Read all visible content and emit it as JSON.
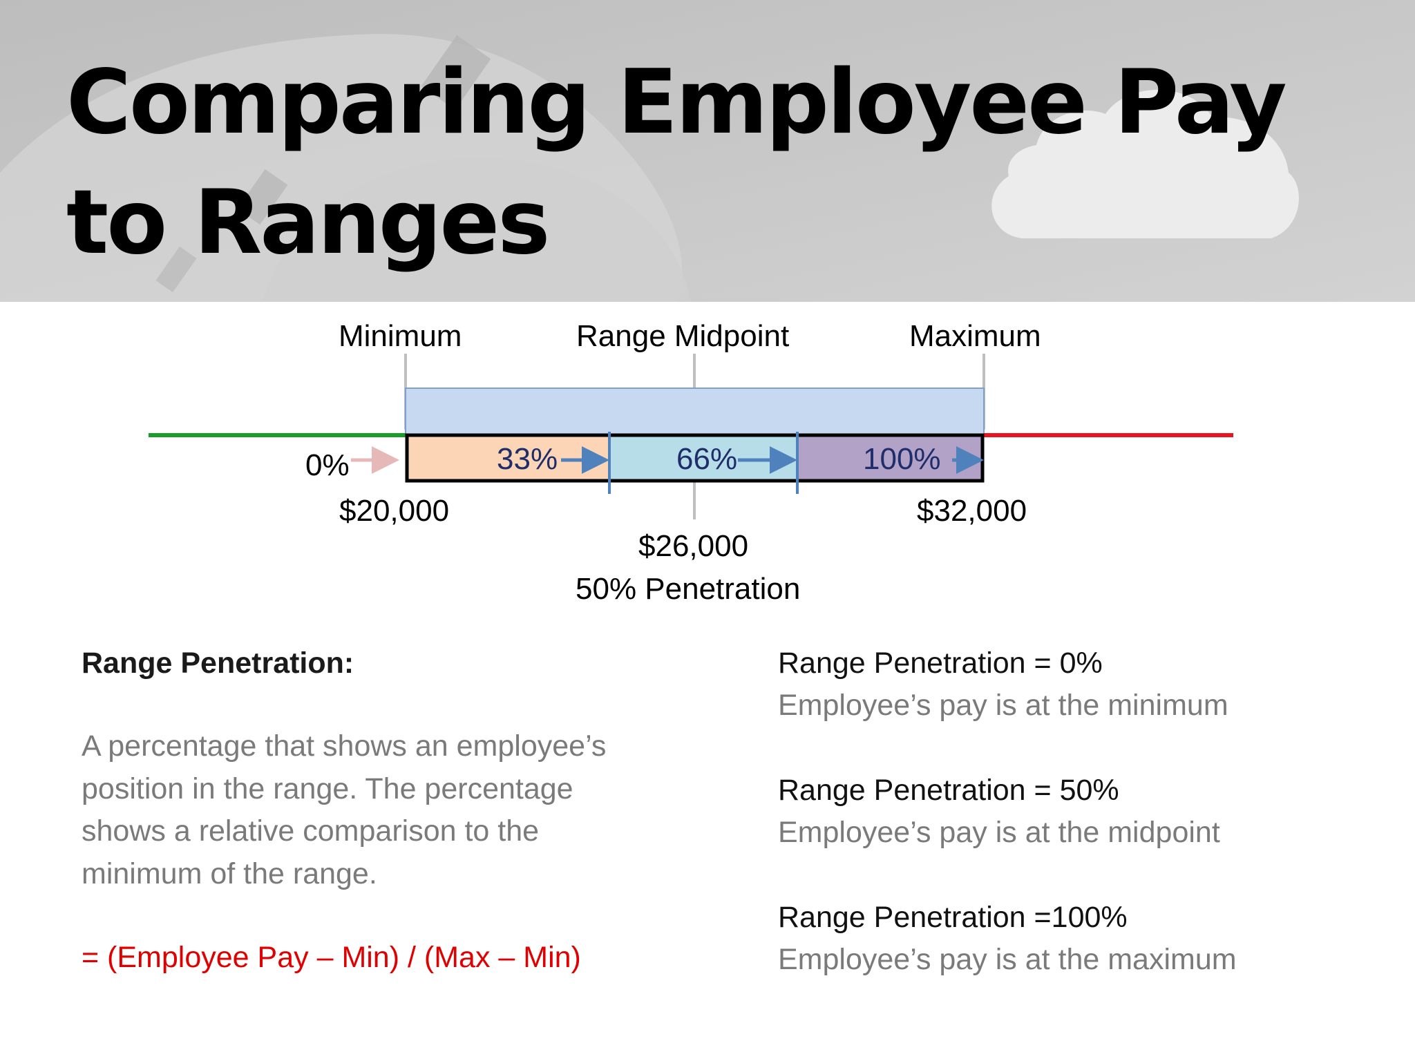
{
  "slide": {
    "title": "Comparing Employee Pay to Ranges"
  },
  "diagram": {
    "top_labels": {
      "minimum": "Minimum",
      "midpoint": "Range Midpoint",
      "maximum": "Maximum"
    },
    "start_label": "0%",
    "segments": [
      {
        "label": "33%",
        "fill": "#fbd5b5"
      },
      {
        "label": "66%",
        "fill": "#b7dde8"
      },
      {
        "label": "100%",
        "fill": "#b3a2c7"
      }
    ],
    "min_value": "$20,000",
    "max_value": "$32,000",
    "mid_value": "$26,000",
    "mid_caption": "50% Penetration",
    "colors": {
      "range_band": "#c6d9f1",
      "below_line": "#1a9c2a",
      "above_line": "#e8141f",
      "arrow": "#4f81bd",
      "start_arrow": "#e6b9b8"
    }
  },
  "definition": {
    "heading": "Range Penetration:",
    "text": "A percentage that shows an employee’s position in the range. The percentage shows a relative comparison to the minimum of the range.",
    "formula": "= (Employee Pay – Min) / (Max – Min)"
  },
  "examples": [
    {
      "head": "Range Penetration = 0%",
      "sub": "Employee’s pay is at the minimum"
    },
    {
      "head": "Range Penetration = 50%",
      "sub": "Employee’s pay is at the midpoint"
    },
    {
      "head": "Range Penetration =100%",
      "sub": "Employee’s pay is at the maximum"
    }
  ]
}
